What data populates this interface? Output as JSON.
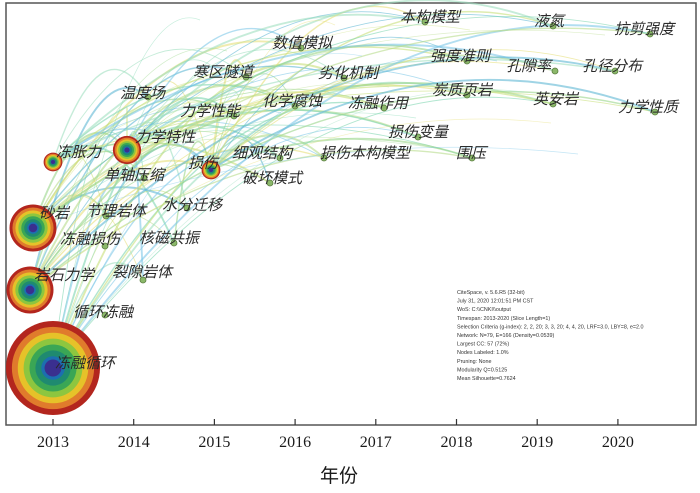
{
  "chart_data": {
    "type": "scatter",
    "xlabel": "年份",
    "x_ticks": [
      2013,
      2014,
      2015,
      2016,
      2017,
      2018,
      2019,
      2020
    ],
    "xlim": [
      2012.5,
      2021.0
    ],
    "grid": false,
    "keywords": [
      {
        "label": "冻融循环",
        "year": 2013,
        "size": 10
      },
      {
        "label": "岩石力学",
        "year": 2013,
        "size": 5
      },
      {
        "label": "砂岩",
        "year": 2013,
        "size": 5
      },
      {
        "label": "冻胀力",
        "year": 2013,
        "size": 2
      },
      {
        "label": "循环冻融",
        "year": 2013,
        "size": 1
      },
      {
        "label": "冻融损伤",
        "year": 2013,
        "size": 1
      },
      {
        "label": "力学特性",
        "year": 2014,
        "size": 3
      },
      {
        "label": "温度场",
        "year": 2014,
        "size": 1
      },
      {
        "label": "单轴压缩",
        "year": 2014,
        "size": 1
      },
      {
        "label": "节理岩体",
        "year": 2014,
        "size": 1
      },
      {
        "label": "裂隙岩体",
        "year": 2014,
        "size": 1
      },
      {
        "label": "核磁共振",
        "year": 2014,
        "size": 1
      },
      {
        "label": "水分迁移",
        "year": 2014,
        "size": 1
      },
      {
        "label": "损伤",
        "year": 2015,
        "size": 2
      },
      {
        "label": "力学性能",
        "year": 2015,
        "size": 1
      },
      {
        "label": "寒区隧道",
        "year": 2015,
        "size": 1
      },
      {
        "label": "细观结构",
        "year": 2015,
        "size": 1
      },
      {
        "label": "破坏模式",
        "year": 2015,
        "size": 1
      },
      {
        "label": "数值模拟",
        "year": 2016,
        "size": 1
      },
      {
        "label": "化学腐蚀",
        "year": 2016,
        "size": 1
      },
      {
        "label": "劣化机制",
        "year": 2016,
        "size": 1
      },
      {
        "label": "损伤本构模型",
        "year": 2016,
        "size": 1
      },
      {
        "label": "冻融作用",
        "year": 2017,
        "size": 1
      },
      {
        "label": "本构模型",
        "year": 2017,
        "size": 1
      },
      {
        "label": "损伤变量",
        "year": 2017,
        "size": 1
      },
      {
        "label": "强度准则",
        "year": 2018,
        "size": 1
      },
      {
        "label": "炭质页岩",
        "year": 2018,
        "size": 1
      },
      {
        "label": "围压",
        "year": 2018,
        "size": 1
      },
      {
        "label": "液氮",
        "year": 2019,
        "size": 1
      },
      {
        "label": "孔隙率",
        "year": 2019,
        "size": 1
      },
      {
        "label": "英安岩",
        "year": 2019,
        "size": 1
      },
      {
        "label": "孔径分布",
        "year": 2020,
        "size": 1
      },
      {
        "label": "抗剪强度",
        "year": 2020,
        "size": 1
      },
      {
        "label": "力学性质",
        "year": 2020,
        "size": 1
      }
    ],
    "info_box": [
      "CiteSpace, v. 5.6.R5 (32-bit)",
      "July 31, 2020 12:01:51 PM CST",
      "WoS: C:\\\\CNKI\\\\output",
      "Timespan: 2013-2020 (Slice Length=1)",
      "Selection Criteria (g-index): 2, 2, 20; 3, 3, 20; 4, 4, 20, LRF=3.0, LBY=8, e=2.0",
      "Network: N=79, E=166 (Density=0.0539)",
      "Largest CC: 57 (72%)",
      "Nodes Labeled: 1.0%",
      "Pruning: None",
      "Modularity Q=0.5125",
      "Mean Silhouette=0.7624"
    ]
  }
}
